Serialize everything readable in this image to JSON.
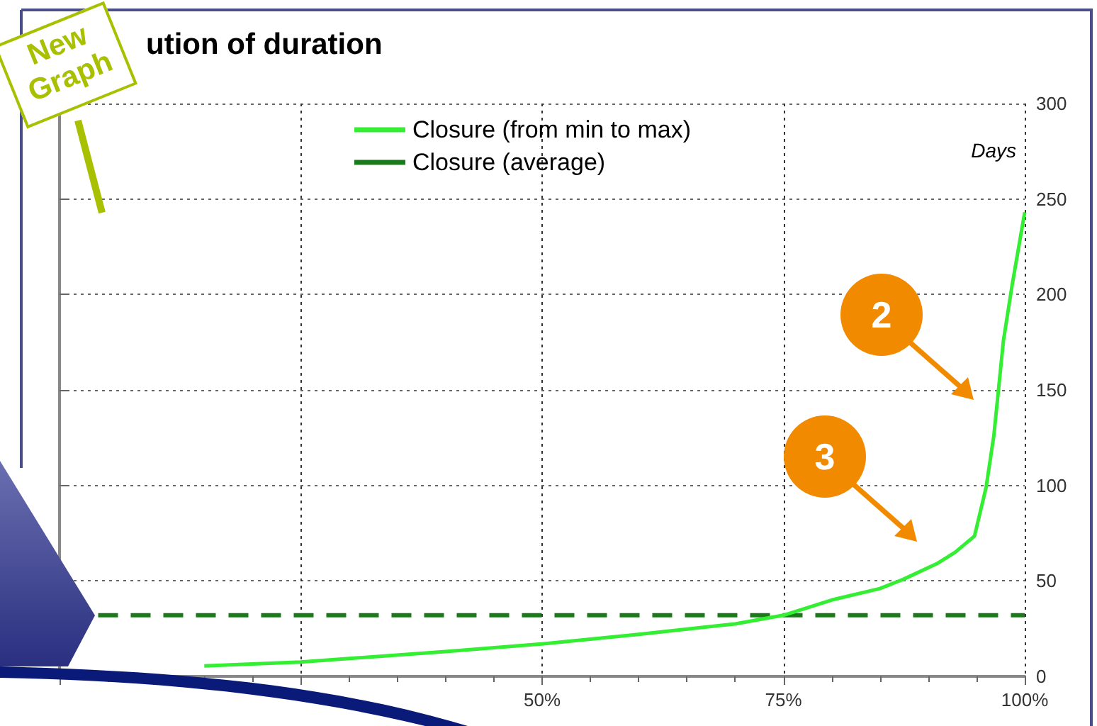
{
  "chart_data": {
    "type": "line",
    "title": "ution of duration",
    "ylabel": "Days",
    "x": [
      15,
      25,
      40,
      50,
      60,
      70,
      75,
      80,
      85,
      87.5,
      90.9,
      92.8,
      94.8,
      96,
      96.8,
      97.8,
      98.7,
      100
    ],
    "series": [
      {
        "name": "Closure (from min to max)",
        "color": "#33ee33",
        "values": [
          5.5,
          7.5,
          13,
          17,
          22,
          27.5,
          32,
          40,
          46,
          51,
          59,
          65,
          73.5,
          99,
          126,
          176,
          205,
          243
        ]
      },
      {
        "name": "Closure (average)",
        "color": "#1a7a1a",
        "x": [
          4,
          100
        ],
        "values": [
          32,
          32
        ],
        "line_style": "dashed"
      }
    ],
    "xlim": [
      0,
      100
    ],
    "xticks": [
      {
        "value": 0,
        "label": null
      },
      {
        "value": 25,
        "label": null
      },
      {
        "value": 50,
        "label": "50%"
      },
      {
        "value": 75,
        "label": "75%"
      },
      {
        "value": 100,
        "label": "100%"
      }
    ],
    "ylim": [
      0,
      300
    ],
    "yticks": [
      0,
      50,
      100,
      150,
      200,
      250,
      300
    ],
    "grid": true,
    "legend": "top",
    "marker": "none",
    "line_style": "solid",
    "annotations": [
      "New Graph",
      "2",
      "3"
    ]
  }
}
